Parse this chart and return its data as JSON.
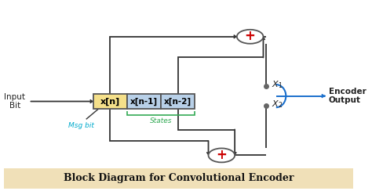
{
  "title": "Block Diagram for Convolutional Encoder",
  "title_bg": "#f0e0b8",
  "title_color": "#111111",
  "box_xn_color": "#f5e08a",
  "box_state_color": "#b8d0e8",
  "box_border_color": "#555555",
  "line_color": "#333333",
  "adder_circle_color": "#ffffff",
  "adder_border_color": "#555555",
  "adder_plus_color": "#cc0000",
  "msg_bit_color": "#00aacc",
  "states_color": "#33aa55",
  "output_arrow_color": "#1a6fcc",
  "x1_x2_color": "#222222",
  "encoder_output_color": "#222222",
  "input_bit_color": "#222222",
  "xn_label": "x[n]",
  "xn1_label": "x[n-1]",
  "xn2_label": "x[n-2]",
  "msg_bit_label": "Msg bit",
  "states_label": "States",
  "input_label1": "Input",
  "input_label2": "Bit",
  "encoder_label1": "Encoder",
  "encoder_label2": "Output"
}
